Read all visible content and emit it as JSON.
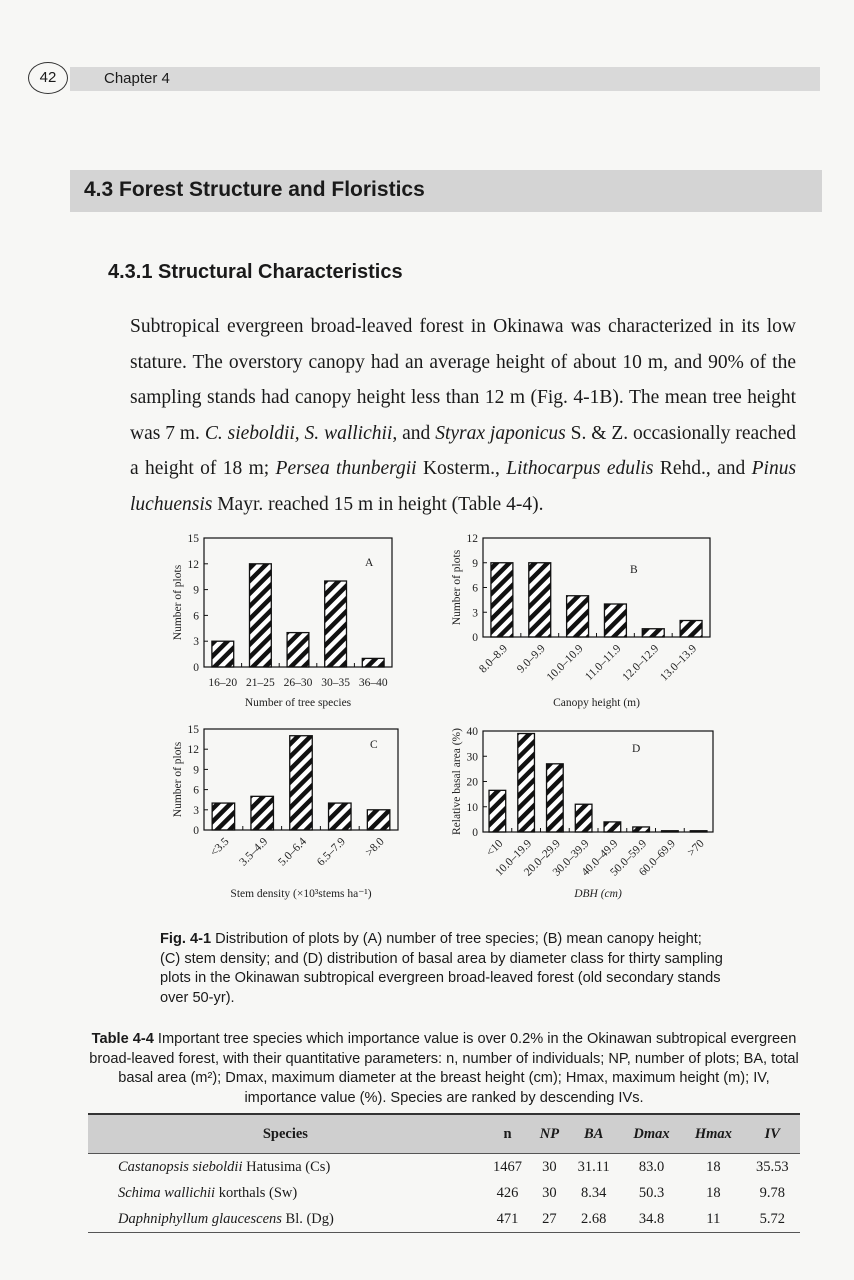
{
  "header": {
    "page_number": "42",
    "chapter": "Chapter 4"
  },
  "section_title": "4.3 Forest Structure and Floristics",
  "subsection_title": "4.3.1 Structural Characteristics",
  "paragraph": [
    {
      "t": "Subtropical evergreen broad-leaved forest in Okinawa was characterized in its low stature. The overstory canopy had an average height of about 10 m, and 90% of the sampling stands had canopy height less than 12 m (Fig. 4-1B). The mean tree height was 7 m. ",
      "i": false
    },
    {
      "t": "C. sieboldii, S. wallichii,",
      "i": true
    },
    {
      "t": " and ",
      "i": false
    },
    {
      "t": "Styrax japonicus",
      "i": true
    },
    {
      "t": " S. & Z. occasionally reached a height of 18 m; ",
      "i": false
    },
    {
      "t": "Persea thunbergii",
      "i": true
    },
    {
      "t": " Kosterm., ",
      "i": false
    },
    {
      "t": "Lithocarpus edulis",
      "i": true
    },
    {
      "t": " Rehd., and ",
      "i": false
    },
    {
      "t": "Pinus luchuensis",
      "i": true
    },
    {
      "t": " Mayr. reached 15 m in height (Table 4-4).",
      "i": false
    }
  ],
  "chart_data": [
    {
      "type": "bar",
      "panel": "A",
      "categories": [
        "16–20",
        "21–25",
        "26–30",
        "30–35",
        "36–40"
      ],
      "values": [
        3,
        12,
        4,
        10,
        1
      ],
      "xlabel": "Number of tree species",
      "ylabel": "Number of plots",
      "ylim": [
        0,
        15
      ],
      "yticks": [
        0,
        3,
        6,
        9,
        12,
        15
      ],
      "fill": "diagonal hatch"
    },
    {
      "type": "bar",
      "panel": "B",
      "categories": [
        "8.0–8.9",
        "9.0–9.9",
        "10.0–10.9",
        "11.0–11.9",
        "12.0–12.9",
        "13.0–13.9"
      ],
      "values": [
        9,
        9,
        5,
        4,
        1,
        2
      ],
      "xlabel": "Canopy height (m)",
      "ylabel": "Number of plots",
      "ylim": [
        0,
        12
      ],
      "yticks": [
        0,
        3,
        6,
        9,
        12
      ],
      "fill": "diagonal hatch"
    },
    {
      "type": "bar",
      "panel": "C",
      "categories": [
        "<3.5",
        "3.5–4.9",
        "5.0–6.4",
        "6.5–7.9",
        ">8.0"
      ],
      "values": [
        4,
        5,
        14,
        4,
        3
      ],
      "xlabel": "Stem density (×10³stems ha⁻¹)",
      "ylabel": "Number of plots",
      "ylim": [
        0,
        15
      ],
      "yticks": [
        0,
        3,
        6,
        9,
        12,
        15
      ],
      "fill": "diagonal hatch"
    },
    {
      "type": "bar",
      "panel": "D",
      "categories": [
        "<10",
        "10.0–19.9",
        "20.0–29.9",
        "30.0–39.9",
        "40.0–49.9",
        "50.0–59.9",
        "60.0–69.9",
        ">70"
      ],
      "values": [
        16.5,
        39,
        27,
        11,
        4,
        2,
        0.5,
        0.5
      ],
      "xlabel": "DBH (cm)",
      "ylabel": "Relative basal area (%)",
      "ylim": [
        0,
        40
      ],
      "yticks": [
        0,
        10,
        20,
        30,
        40
      ],
      "fill": "diagonal hatch"
    }
  ],
  "figure_caption": {
    "label": "Fig. 4-1",
    "text": " Distribution of plots by (A) number of tree species; (B) mean canopy height; (C) stem density; and (D) distribution of basal area by diameter class for thirty sampling plots in the Okinawan subtropical evergreen broad-leaved forest (old secondary stands over 50-yr)."
  },
  "table_caption": {
    "label": "Table 4-4",
    "text": " Important tree species which importance value is over 0.2% in the Okinawan subtropical evergreen broad-leaved forest, with their quantitative parameters: n, number of individuals; NP, number of plots; BA, total basal area (m²); Dmax, maximum diameter at the breast height (cm); Hmax, maximum height (m); IV, importance value (%). Species are ranked by descending IVs."
  },
  "table": {
    "headers": [
      "Species",
      "n",
      "NP",
      "BA",
      "Dmax",
      "Hmax",
      "IV"
    ],
    "rows": [
      {
        "genus": "Castanopsis sieboldii",
        "author": " Hatusima (Cs)",
        "cells": [
          "1467",
          "30",
          "31.11",
          "83.0",
          "18",
          "35.53"
        ]
      },
      {
        "genus": "Schima wallichii",
        "author": " korthals (Sw)",
        "cells": [
          "426",
          "30",
          "8.34",
          "50.3",
          "18",
          "9.78"
        ]
      },
      {
        "genus": "Daphniphyllum glaucescens",
        "author": " Bl. (Dg)",
        "cells": [
          "471",
          "27",
          "2.68",
          "34.8",
          "11",
          "5.72"
        ]
      }
    ]
  }
}
